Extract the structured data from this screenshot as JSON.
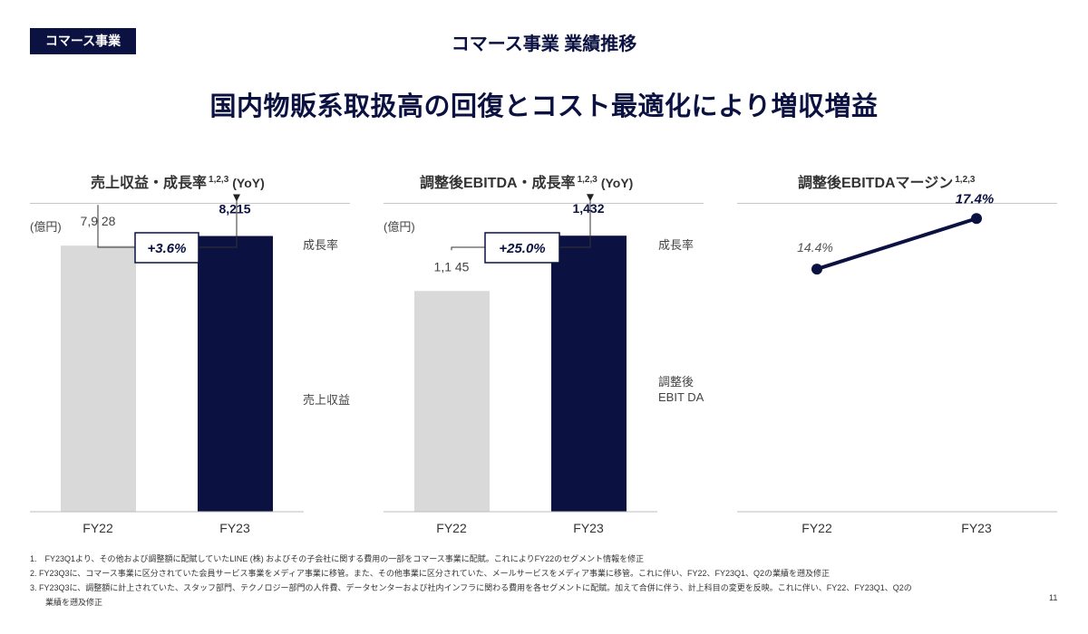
{
  "header": {
    "tag": "コマース事業",
    "title": "コマース事業 業績推移",
    "headline": "国内物販系取扱高の回復とコスト最適化により増収増益"
  },
  "panels": [
    {
      "title": "売上収益・成長率",
      "sup": "1,2,3",
      "suffix": "(YoY)",
      "unit": "(億円)",
      "growth_label": "成長率",
      "bar_label": "売上収益"
    },
    {
      "title": "調整後EBITDA・成長率",
      "sup": "1,2,3",
      "suffix": "(YoY)",
      "unit": "(億円)",
      "growth_label": "成長率",
      "bar_label": "調整後\nEBIT DA"
    },
    {
      "title": "調整後EBITDAマージン",
      "sup": "1,2,3"
    }
  ],
  "chart_data": [
    {
      "type": "bar",
      "title": "売上収益・成長率 (YoY)",
      "unit": "億円",
      "categories": [
        "FY22",
        "FY23"
      ],
      "values": [
        7928,
        8215
      ],
      "value_labels": [
        "7,9 28",
        "8,215"
      ],
      "growth": "+3.6%",
      "ylim": [
        0,
        8500
      ],
      "colors": [
        "#d9d9d9",
        "#0b1241"
      ]
    },
    {
      "type": "bar",
      "title": "調整後EBITDA・成長率 (YoY)",
      "unit": "億円",
      "categories": [
        "FY22",
        "FY23"
      ],
      "values": [
        1145,
        1432
      ],
      "value_labels": [
        "1,1 45",
        "1,432"
      ],
      "growth": "+25.0%",
      "ylim": [
        0,
        1480
      ],
      "colors": [
        "#d9d9d9",
        "#0b1241"
      ]
    },
    {
      "type": "line",
      "title": "調整後EBITDAマージン",
      "categories": [
        "FY22",
        "FY23"
      ],
      "values": [
        14.4,
        17.4
      ],
      "value_labels": [
        "14.4%",
        "17.4%"
      ],
      "ylim": [
        0,
        21.5
      ],
      "color": "#0b1241"
    }
  ],
  "footnotes": {
    "n1": "1.　FY23Q1より、その他および調整額に配賦していたLINE (株) およびその子会社に関する費用の一部をコマース事業に配賦。これによりFY22のセグメント情報を修正",
    "n2": "2. FY23Q3に、コマース事業に区分されていた会員サービス事業をメディア事業に移管。また、その他事業に区分されていた、メールサービスをメディア事業に移管。これに伴い、FY22、FY23Q1、Q2の業績を遡及修正",
    "n3": "3. FY23Q3に、調整額に計上されていた、スタッフ部門、テクノロジー部門の人件費、データセンターおよび社内インフラに関わる費用を各セグメントに配賦。加えて合併に伴う、計上科目の変更を反映。これに伴い、FY22、FY23Q1、Q2の",
    "n3_cont": "業績を遡及修正"
  },
  "page_number": "11"
}
